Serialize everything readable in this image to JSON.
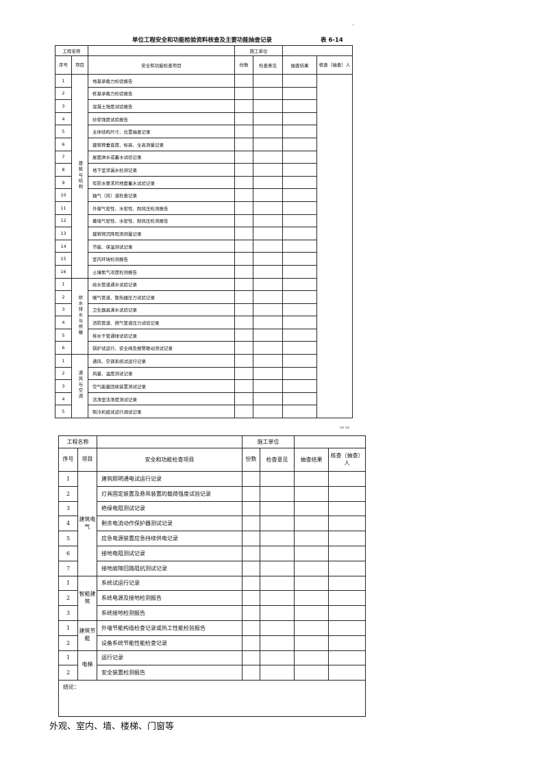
{
  "page": {
    "dot": ".",
    "title": "单位工程安全和功能检验资料核查及主要功能抽查记录",
    "table_no": "表 6-14",
    "stamp": "xx xx",
    "caption": "外观、室内、墙、楼梯、门窗等"
  },
  "headers": {
    "project_name": "工程名称",
    "contractor": "施工单位",
    "seq": "序号",
    "category": "项目",
    "check_item": "安全和功能检查项目",
    "copies": "份数",
    "opinion": "检查意见",
    "result": "抽查结果",
    "checker": "核查（抽查）人"
  },
  "sections1": [
    {
      "category": "建筑与结构",
      "items": [
        {
          "no": "1",
          "name": "地基承载力检验报告"
        },
        {
          "no": "2",
          "name": "桩基承载力检验报告"
        },
        {
          "no": "3",
          "name": "混凝土强度试验报告"
        },
        {
          "no": "4",
          "name": "砂浆强度试验报告"
        },
        {
          "no": "5",
          "name": "主体结构尺寸、位置抽查记录"
        },
        {
          "no": "6",
          "name": "建筑物垂直度、标高、全高测量记录"
        },
        {
          "no": "7",
          "name": "屋面淋水或蓄水试验记录"
        },
        {
          "no": "8",
          "name": "地下室渗漏水检测记录"
        },
        {
          "no": "9",
          "name": "有防水要求的地面蓄水试验记录"
        },
        {
          "no": "10",
          "name": "抽气（风）道检查记录"
        },
        {
          "no": "11",
          "name": "外窗气密性、水密性、耐风压检测报告"
        },
        {
          "no": "12",
          "name": "幕墙气密性、水密性、耐风压检测报告"
        },
        {
          "no": "13",
          "name": "建筑物沉降观测测量记录"
        },
        {
          "no": "14",
          "name": "节能、保温测试记录"
        },
        {
          "no": "15",
          "name": "室内环境检测报告"
        },
        {
          "no": "16",
          "name": "土壤氡气浓度检测报告"
        }
      ]
    },
    {
      "category": "给水排水与供暖",
      "items": [
        {
          "no": "1",
          "name": "给水管道通水试验记录"
        },
        {
          "no": "2",
          "name": "暖气管道、散热器压力试验记录"
        },
        {
          "no": "3",
          "name": "卫生器具满水试验记录"
        },
        {
          "no": "4",
          "name": "消防管道、燃气管道压力试验记录"
        },
        {
          "no": "5",
          "name": "排水干管通球试验记录"
        },
        {
          "no": "6",
          "name": "锅炉试运行、安全阀及报警联动测试记录"
        }
      ]
    },
    {
      "category": "通风与空调",
      "items": [
        {
          "no": "1",
          "name": "通风、空调系统试运行记录"
        },
        {
          "no": "2",
          "name": "风量、温度测试记录"
        },
        {
          "no": "3",
          "name": "空气能量回收装置测试记录"
        },
        {
          "no": "4",
          "name": "洁净室洁净度测试记录"
        },
        {
          "no": "5",
          "name": "制冷机组试运行调试记录"
        }
      ]
    }
  ],
  "sections2": [
    {
      "category": "建筑电气",
      "items": [
        {
          "no": "1",
          "name": "建筑照明通电试运行记录"
        },
        {
          "no": "2",
          "name": "灯具固定装置及悬吊装置的载荷强度试验记录"
        },
        {
          "no": "3",
          "name": "绝缘电阻测试记录"
        },
        {
          "no": "4",
          "name": "剩余电流动作保护器测试记录"
        },
        {
          "no": "5",
          "name": "应急电源装置应急持续供电记录"
        },
        {
          "no": "6",
          "name": "接地电阻测试记录"
        },
        {
          "no": "7",
          "name": "接地故障回路阻抗测试记录"
        }
      ]
    },
    {
      "category": "智能建筑",
      "items": [
        {
          "no": "1",
          "name": "系统试运行记录"
        },
        {
          "no": "2",
          "name": "系统电源及接地检测报告"
        },
        {
          "no": "3",
          "name": "系统接地检测报告"
        }
      ]
    },
    {
      "category": "建筑节能",
      "items": [
        {
          "no": "1",
          "name": "外墙节能构造检查记录或热工性能检验报告"
        },
        {
          "no": "2",
          "name": "设备系统节能性能检查记录"
        }
      ]
    },
    {
      "category": "电梯",
      "items": [
        {
          "no": "1",
          "name": "运行记录"
        },
        {
          "no": "2",
          "name": "安全装置检测报告"
        }
      ]
    }
  ],
  "conclusion": "结论："
}
